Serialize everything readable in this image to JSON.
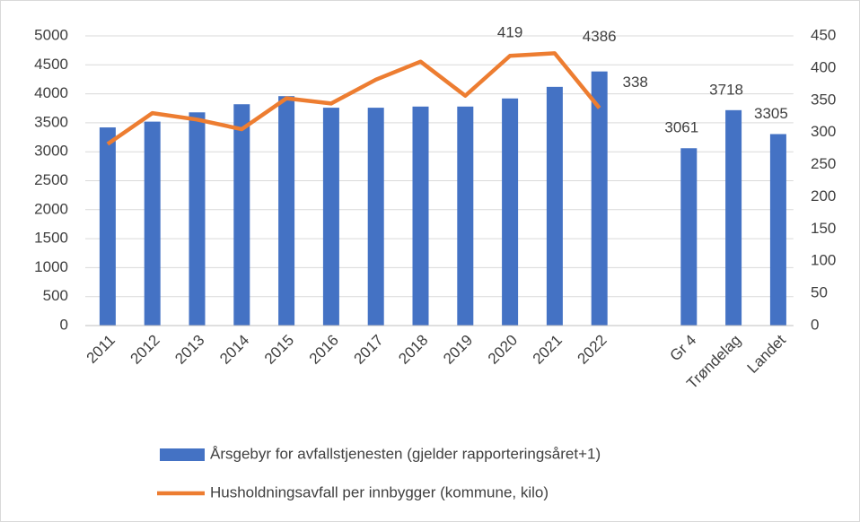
{
  "chart_data": {
    "type": "bar",
    "categories": [
      "2011",
      "2012",
      "2013",
      "2014",
      "2015",
      "2016",
      "2017",
      "2018",
      "2019",
      "2020",
      "2021",
      "2022",
      null,
      "Gr 4",
      "Trøndelag",
      "Landet"
    ],
    "series": [
      {
        "name": "Årsgebyr for avfallstjenesten (gjelder rapporteringsåret+1)",
        "type": "bar",
        "color": "#4472c4",
        "values": [
          3420,
          3520,
          3680,
          3820,
          3960,
          3760,
          3760,
          3780,
          3780,
          3920,
          4120,
          4386,
          null,
          3061,
          3718,
          3305
        ],
        "value_labels": [
          null,
          null,
          null,
          null,
          null,
          null,
          null,
          null,
          null,
          null,
          null,
          "4386",
          null,
          "3061",
          "3718",
          "3305"
        ]
      },
      {
        "name": "Husholdningsavfall per innbygger (kommune, kilo)",
        "type": "line",
        "axis": "y2",
        "color": "#ed7d31",
        "values": [
          282,
          330,
          320,
          305,
          353,
          345,
          382,
          410,
          357,
          419,
          423,
          338,
          null,
          null,
          null,
          null
        ],
        "value_labels": [
          null,
          null,
          null,
          null,
          null,
          null,
          null,
          null,
          null,
          "419",
          null,
          "338",
          null,
          null,
          null,
          null
        ]
      }
    ],
    "ylim": [
      0,
      5000
    ],
    "yticks": [
      0,
      500,
      1000,
      1500,
      2000,
      2500,
      3000,
      3500,
      4000,
      4500,
      5000
    ],
    "y2lim": [
      0,
      450
    ],
    "y2ticks": [
      0,
      50,
      100,
      150,
      200,
      250,
      300,
      350,
      400,
      450
    ],
    "grid": true,
    "legend": "bottom"
  }
}
